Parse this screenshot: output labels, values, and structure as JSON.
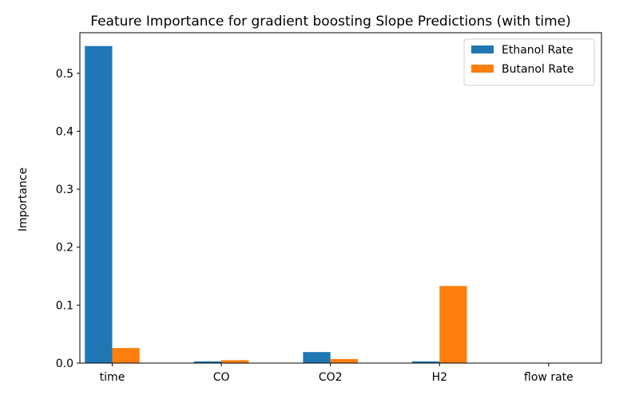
{
  "chart_data": {
    "type": "bar",
    "title": "Feature Importance for gradient boosting Slope Predictions (with time)",
    "xlabel": "",
    "ylabel": "Importance",
    "categories": [
      "time",
      "CO",
      "CO2",
      "H2",
      "flow rate"
    ],
    "series": [
      {
        "name": "Ethanol Rate",
        "color": "#1f77b4",
        "values": [
          0.547,
          0.003,
          0.019,
          0.003,
          0.0
        ]
      },
      {
        "name": "Butanol Rate",
        "color": "#ff7f0e",
        "values": [
          0.026,
          0.005,
          0.007,
          0.133,
          0.0
        ]
      }
    ],
    "ylim": [
      0,
      0.57
    ],
    "yticks": [
      "0.0",
      "0.1",
      "0.2",
      "0.3",
      "0.4",
      "0.5"
    ],
    "grid": false,
    "legend": "top-right"
  }
}
